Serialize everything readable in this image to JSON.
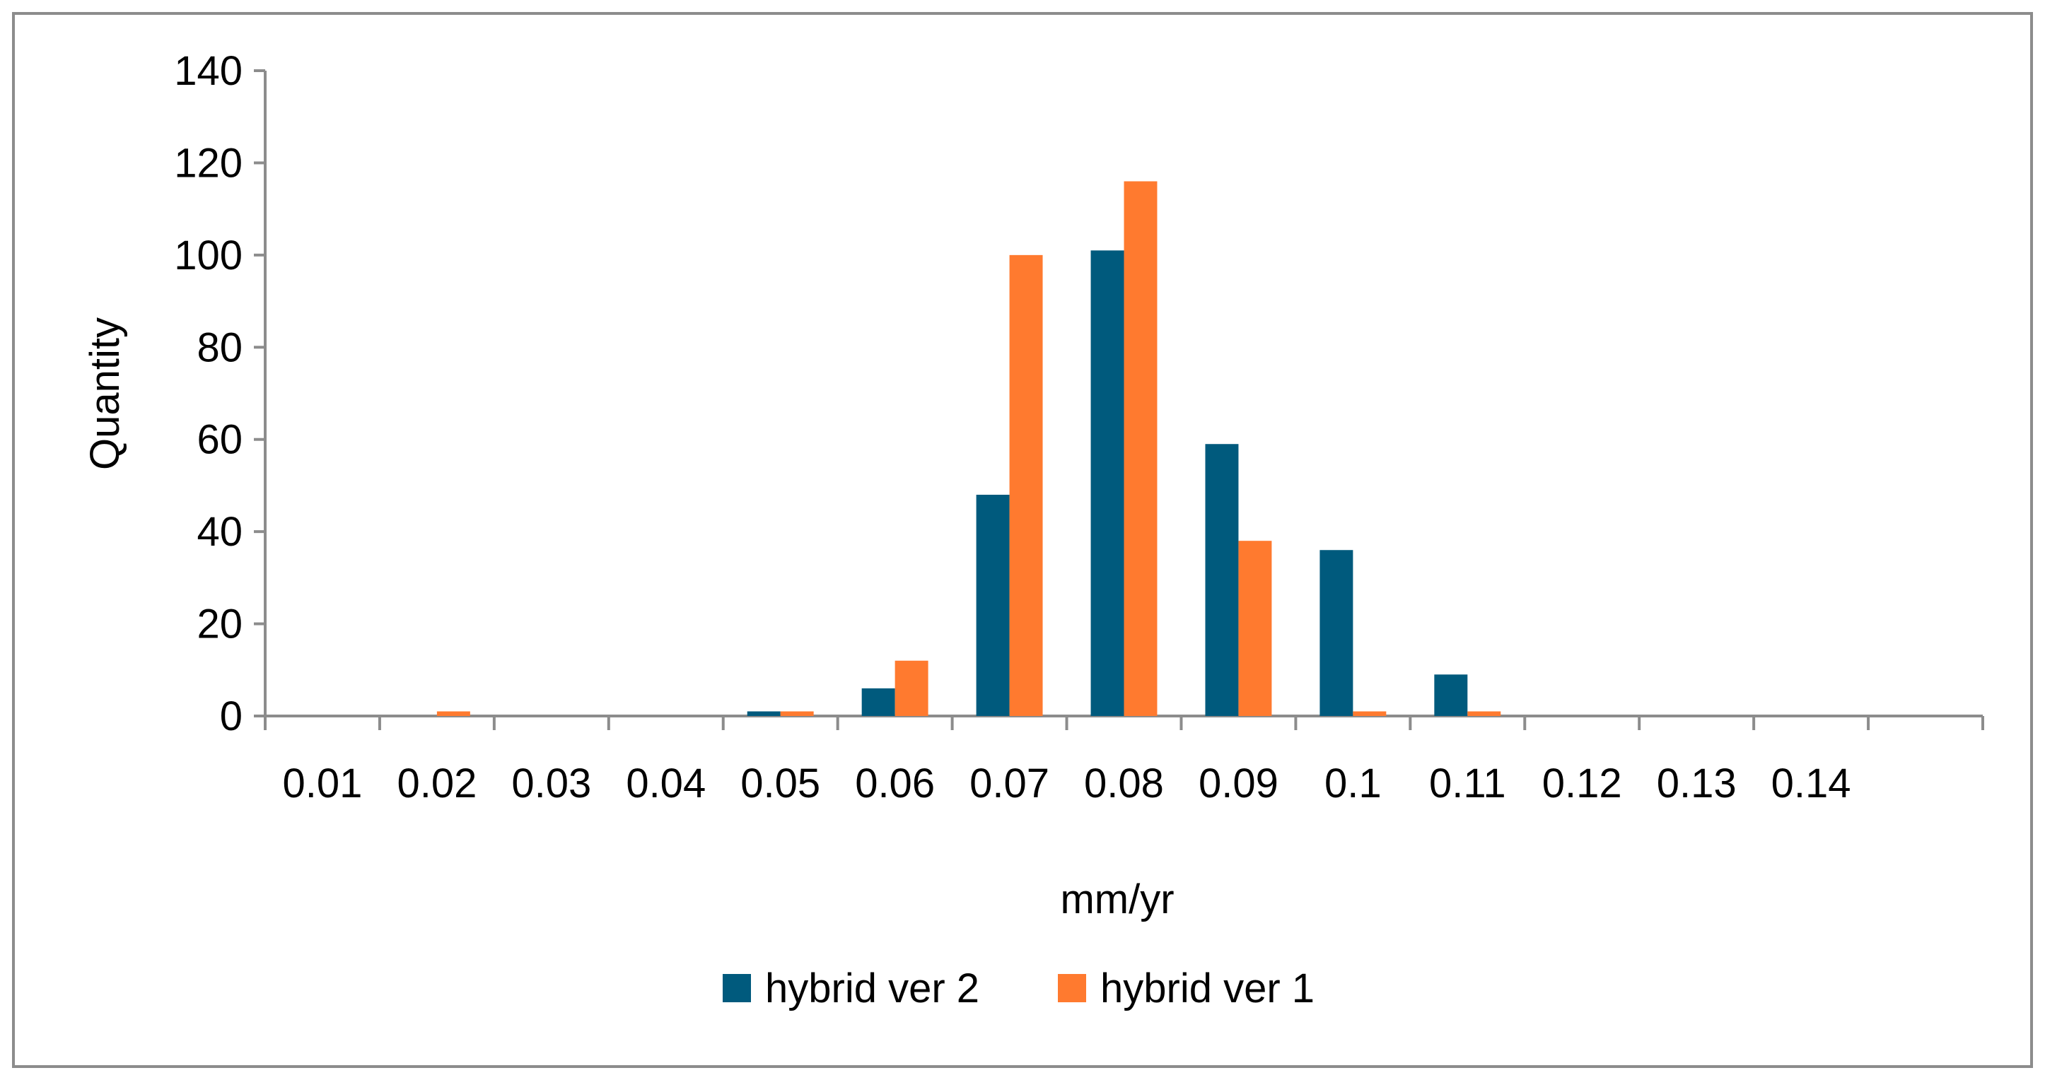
{
  "chart_data": {
    "type": "bar",
    "title": "",
    "xlabel": "mm/yr",
    "ylabel": "Quantity",
    "categories": [
      "0.01",
      "0.02",
      "0.03",
      "0.04",
      "0.05",
      "0.06",
      "0.07",
      "0.08",
      "0.09",
      "0.1",
      "0.11",
      "0.12",
      "0.13",
      "0.14",
      ""
    ],
    "series": [
      {
        "name": "hybrid ver 2",
        "color": "#005A7D",
        "values": [
          0,
          0,
          0,
          0,
          1,
          6,
          48,
          101,
          59,
          36,
          9,
          0,
          0,
          0,
          0
        ]
      },
      {
        "name": "hybrid ver 1",
        "color": "#FF7A2F",
        "values": [
          0,
          1,
          0,
          0,
          1,
          12,
          100,
          116,
          38,
          1,
          1,
          0,
          0,
          0,
          0
        ]
      }
    ],
    "ylim": [
      0,
      140
    ],
    "yticks": [
      0,
      20,
      40,
      60,
      80,
      100,
      120,
      140
    ],
    "grid": false,
    "legend_position": "bottom"
  }
}
